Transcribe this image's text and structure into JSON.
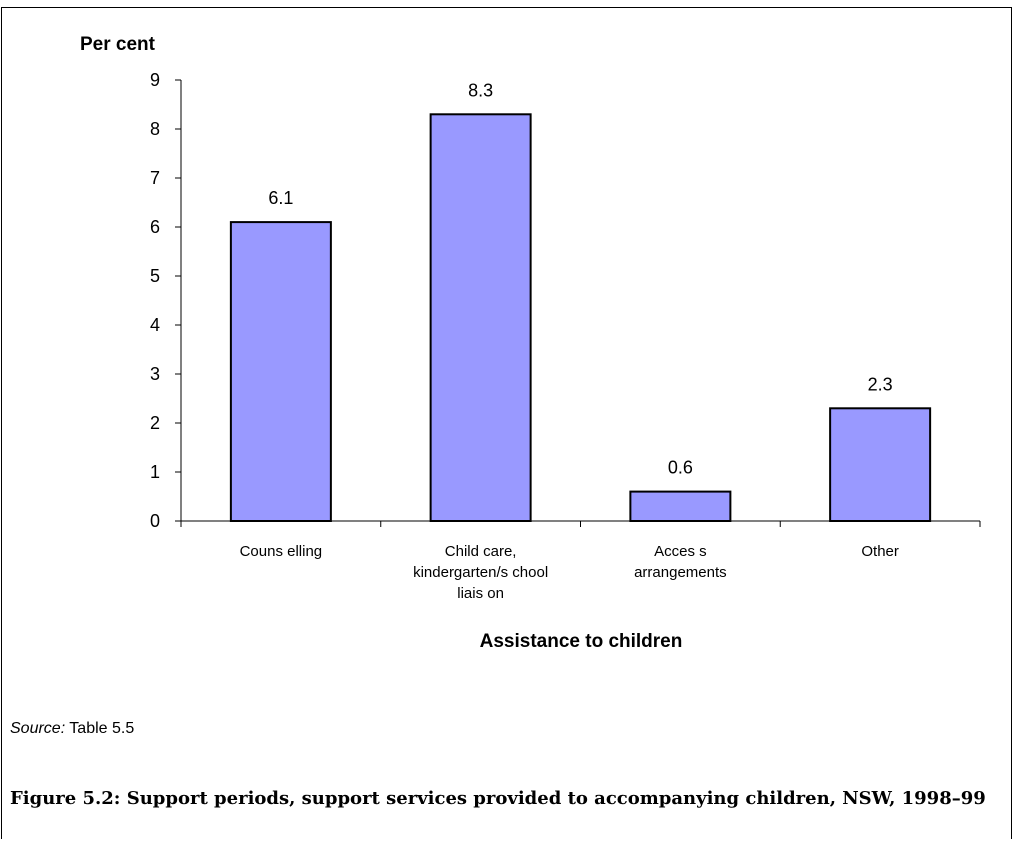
{
  "figure": {
    "source_label": "Source:",
    "source_text": "Table 5.5",
    "caption": "Figure 5.2: Support periods, support services provided to accompanying children, NSW, 1998–99"
  },
  "chart_data": {
    "type": "bar",
    "categories": [
      [
        "Couns elling"
      ],
      [
        "Child care,",
        "kindergarten/s chool",
        "liais on"
      ],
      [
        "Acces s",
        "arrangements"
      ],
      [
        "Other"
      ]
    ],
    "values": [
      6.1,
      8.3,
      0.6,
      2.3
    ],
    "data_labels": [
      "6.1",
      "8.3",
      "0.6",
      "2.3"
    ],
    "ylabel": "Per cent",
    "xlabel": "Assistance to children",
    "ylim": [
      0,
      9
    ],
    "yticks": [
      0,
      1,
      2,
      3,
      4,
      5,
      6,
      7,
      8,
      9
    ],
    "grid": false,
    "colors": {
      "bar_fill": "#9999ff",
      "bar_stroke": "#000000"
    }
  }
}
